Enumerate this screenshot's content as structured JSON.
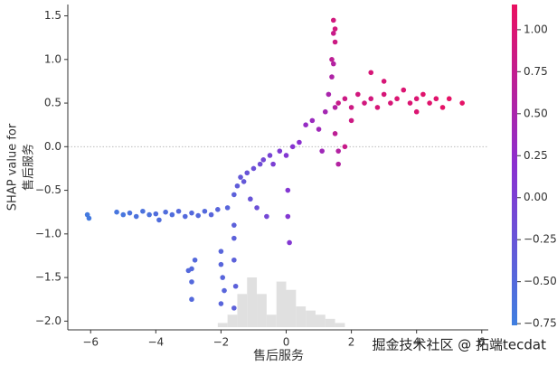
{
  "chart_data": {
    "type": "scatter",
    "x_label": "售后服务",
    "y_label_lines": [
      "SHAP value for",
      "售后服务"
    ],
    "watermark": "掘金技术社区 @ 拓端tecdat",
    "xlim": [
      -6.7,
      6.2
    ],
    "ylim": [
      -2.1,
      1.63
    ],
    "xticks": [
      {
        "value": -6,
        "label": "−6"
      },
      {
        "value": -4,
        "label": "−4"
      },
      {
        "value": -2,
        "label": "−2"
      },
      0,
      2,
      4,
      6
    ],
    "yticks": [
      {
        "value": -2,
        "label": "−2.0"
      },
      {
        "value": -1.5,
        "label": "−1.5"
      },
      {
        "value": -1,
        "label": "−1.0"
      },
      {
        "value": -0.5,
        "label": "−0.5"
      },
      {
        "value": 0,
        "label": "0.0"
      },
      {
        "value": 0.5,
        "label": "0.5"
      },
      {
        "value": 1,
        "label": "1.0"
      },
      {
        "value": 1.5,
        "label": "1.5"
      }
    ],
    "hline": 0,
    "colorbar": {
      "lim": [
        -0.76,
        1.15
      ],
      "colors": [
        "#3f7fe0",
        "#8b2fd0",
        "#ea1060"
      ],
      "ticks": [
        {
          "value": -0.75,
          "label": "−0.75"
        },
        {
          "value": -0.5,
          "label": "−0.50"
        },
        {
          "value": -0.25,
          "label": "−0.25"
        },
        {
          "value": 0,
          "label": "0.00"
        },
        {
          "value": 0.25,
          "label": "0.25"
        },
        {
          "value": 0.5,
          "label": "0.50"
        },
        {
          "value": 0.75,
          "label": "0.75"
        },
        {
          "value": 1,
          "label": "1.00"
        }
      ]
    },
    "histogram": {
      "color": "#e0e0e0",
      "bins": [
        -2.1,
        -1.8,
        -1.5,
        -1.2,
        -0.9,
        -0.6,
        -0.3,
        0,
        0.3,
        0.6,
        0.9,
        1.2,
        1.5,
        1.8
      ],
      "counts": [
        5,
        15,
        40,
        60,
        40,
        15,
        55,
        45,
        25,
        20,
        15,
        10,
        5
      ]
    },
    "x": [
      -6.1,
      -6.05,
      -5.2,
      -5.0,
      -4.8,
      -4.6,
      -4.4,
      -4.2,
      -4.0,
      -3.9,
      -3.7,
      -3.5,
      -3.3,
      -3.1,
      -2.9,
      -2.7,
      -2.5,
      -2.3,
      -2.1,
      -2.9,
      -2.9,
      -2.9,
      -2.8,
      -3.0,
      -2.0,
      -2.0,
      -1.95,
      -1.9,
      -2.0,
      -1.6,
      -1.6,
      -1.6,
      -1.55,
      -1.6,
      -1.8,
      -1.6,
      -1.5,
      -1.4,
      -1.3,
      -1.2,
      -1.1,
      -1.0,
      -0.9,
      -0.8,
      -0.7,
      -0.6,
      -0.5,
      -0.4,
      -0.2,
      0,
      0.05,
      0.05,
      0.1,
      0.2,
      0.4,
      0.6,
      0.8,
      1.0,
      1.2,
      1.3,
      1.4,
      1.45,
      1.5,
      1.1,
      1.6,
      1.6,
      1.4,
      1.45,
      1.45,
      1.5,
      1.5,
      1.5,
      1.6,
      1.8,
      2.0,
      2.2,
      2.4,
      2.6,
      2.8,
      3.0,
      3.2,
      3.4,
      3.6,
      3.8,
      4.0,
      4.2,
      4.4,
      4.6,
      4.8,
      5.0,
      5.4,
      2.0,
      1.8,
      2.6,
      4.0,
      3.0
    ],
    "y": [
      -0.78,
      -0.82,
      -0.75,
      -0.78,
      -0.76,
      -0.8,
      -0.74,
      -0.78,
      -0.77,
      -0.84,
      -0.75,
      -0.78,
      -0.74,
      -0.8,
      -0.76,
      -0.79,
      -0.74,
      -0.78,
      -0.72,
      -1.4,
      -1.55,
      -1.75,
      -1.3,
      -1.42,
      -1.2,
      -1.35,
      -1.5,
      -1.65,
      -1.8,
      -0.9,
      -1.05,
      -1.3,
      -1.6,
      -1.85,
      -0.7,
      -0.55,
      -0.45,
      -0.35,
      -0.4,
      -0.3,
      -0.6,
      -0.25,
      -0.7,
      -0.2,
      -0.15,
      -0.8,
      -0.1,
      -0.2,
      -0.05,
      -0.1,
      -0.5,
      -0.8,
      -1.1,
      0.0,
      0.05,
      0.25,
      0.3,
      0.2,
      0.4,
      0.6,
      0.8,
      0.95,
      0.45,
      -0.05,
      -0.05,
      -0.2,
      1.0,
      1.3,
      1.45,
      1.2,
      1.35,
      0.15,
      0.5,
      0.55,
      0.45,
      0.6,
      0.5,
      0.55,
      0.45,
      0.6,
      0.5,
      0.55,
      0.65,
      0.5,
      0.55,
      0.6,
      0.5,
      0.55,
      0.45,
      0.55,
      0.5,
      0.3,
      0.0,
      0.85,
      0.4,
      0.75
    ],
    "color_values": [
      -0.7,
      -0.7,
      -0.65,
      -0.65,
      -0.6,
      -0.6,
      -0.6,
      -0.6,
      -0.55,
      -0.55,
      -0.55,
      -0.55,
      -0.5,
      -0.5,
      -0.5,
      -0.5,
      -0.5,
      -0.45,
      -0.45,
      -0.5,
      -0.5,
      -0.5,
      -0.5,
      -0.5,
      -0.45,
      -0.45,
      -0.45,
      -0.45,
      -0.45,
      -0.4,
      -0.4,
      -0.4,
      -0.4,
      -0.4,
      -0.45,
      -0.4,
      -0.35,
      -0.3,
      -0.3,
      -0.25,
      -0.25,
      -0.2,
      -0.2,
      -0.15,
      -0.1,
      -0.1,
      -0.05,
      0.0,
      0.05,
      0.1,
      0.1,
      0.1,
      0.1,
      0.15,
      0.2,
      0.3,
      0.35,
      0.4,
      0.45,
      0.5,
      0.55,
      0.6,
      0.6,
      0.4,
      0.6,
      0.6,
      0.7,
      0.8,
      0.9,
      0.85,
      0.9,
      0.7,
      0.8,
      0.85,
      0.85,
      0.9,
      0.9,
      0.9,
      0.95,
      0.95,
      0.95,
      1.0,
      1.0,
      1.0,
      1.0,
      1.05,
      1.05,
      1.05,
      1.1,
      1.1,
      1.1,
      0.85,
      0.8,
      0.95,
      1.0,
      0.95
    ]
  }
}
